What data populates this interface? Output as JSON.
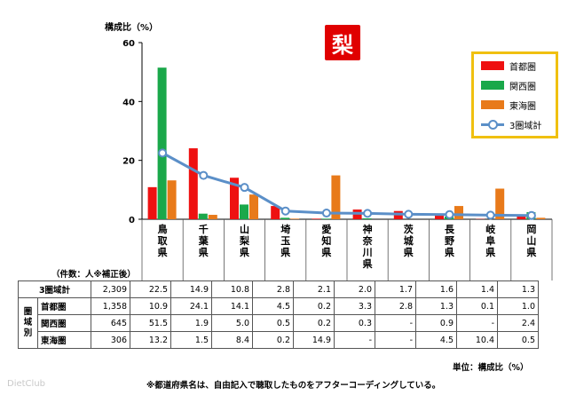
{
  "badge": "梨",
  "sample_header": "（件数：人※補正後）",
  "row_group_label": "圏\n域\n別",
  "unit_note": "単位：構成比（%）",
  "footnote": "※都道府県名は、自由記入で聴取したものをアフターコーディングしている。",
  "watermark": "DietClub",
  "chart_data": {
    "type": "bar",
    "ylabel": "構成比（%）",
    "ylim": [
      0,
      60
    ],
    "yticks": [
      0,
      20,
      40,
      60
    ],
    "grid": false,
    "legend_position": "top-right",
    "categories": [
      "鳥取県",
      "千葉県",
      "山梨県",
      "埼玉県",
      "愛知県",
      "神奈川県",
      "茨城県",
      "長野県",
      "岐阜県",
      "岡山県"
    ],
    "series": [
      {
        "name": "首都圏",
        "kind": "bar",
        "color": "#ee1111",
        "count": "1,358",
        "values": [
          10.9,
          24.1,
          14.1,
          4.5,
          0.2,
          3.3,
          2.8,
          1.3,
          0.1,
          1.0
        ],
        "labels": [
          "10.9",
          "24.1",
          "14.1",
          "4.5",
          "0.2",
          "3.3",
          "2.8",
          "1.3",
          "0.1",
          "1.0"
        ]
      },
      {
        "name": "関西圏",
        "kind": "bar",
        "color": "#1aa84a",
        "count": "645",
        "values": [
          51.5,
          1.9,
          5.0,
          0.5,
          0.2,
          0.3,
          0,
          0.9,
          0,
          2.4
        ],
        "labels": [
          "51.5",
          "1.9",
          "5.0",
          "0.5",
          "0.2",
          "0.3",
          "-",
          "0.9",
          "-",
          "2.4"
        ]
      },
      {
        "name": "東海圏",
        "kind": "bar",
        "color": "#e87a1a",
        "count": "306",
        "values": [
          13.2,
          1.5,
          8.4,
          0.2,
          14.9,
          0,
          0,
          4.5,
          10.4,
          0.5
        ],
        "labels": [
          "13.2",
          "1.5",
          "8.4",
          "0.2",
          "14.9",
          "-",
          "-",
          "4.5",
          "10.4",
          "0.5"
        ]
      },
      {
        "name": "3圏域計",
        "kind": "line",
        "color": "#5b8fc8",
        "count": "2,309",
        "values": [
          22.5,
          14.9,
          10.8,
          2.8,
          2.1,
          2.0,
          1.7,
          1.6,
          1.4,
          1.3
        ],
        "labels": [
          "22.5",
          "14.9",
          "10.8",
          "2.8",
          "2.1",
          "2.0",
          "1.7",
          "1.6",
          "1.4",
          "1.3"
        ]
      }
    ]
  }
}
